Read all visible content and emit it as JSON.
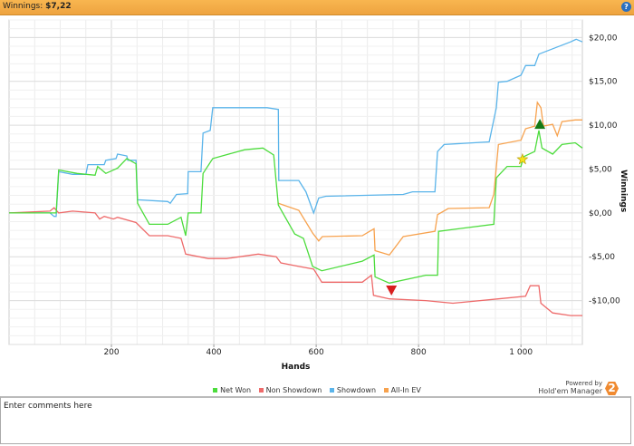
{
  "header": {
    "label": "Winnings:",
    "value": "$7,22",
    "help_icon": "?"
  },
  "chart_data": {
    "type": "line",
    "xlabel": "Hands",
    "ylabel": "Winnings",
    "xlim": [
      0,
      1120
    ],
    "ylim": [
      -15,
      22
    ],
    "x_ticks": [
      200,
      400,
      600,
      800,
      1000
    ],
    "x_tick_labels": [
      "200",
      "400",
      "600",
      "800",
      "1 000"
    ],
    "y_ticks": [
      20,
      15,
      10,
      5,
      0,
      -5,
      -10
    ],
    "y_tick_labels": [
      "$20,00",
      "$15,00",
      "$10,00",
      "$5,00",
      "$0,00",
      "-$5,00",
      "-$10,00"
    ],
    "grid": true,
    "legend_position": "bottom",
    "series": [
      {
        "name": "Showdown",
        "color": "#5ab4ea",
        "points": [
          [
            0,
            0
          ],
          [
            80,
            0
          ],
          [
            88,
            -0.4
          ],
          [
            92,
            -0.4
          ],
          [
            97,
            4.7
          ],
          [
            124,
            4.4
          ],
          [
            150,
            4.4
          ],
          [
            154,
            5.5
          ],
          [
            186,
            5.5
          ],
          [
            189,
            6.0
          ],
          [
            209,
            6.2
          ],
          [
            212,
            6.7
          ],
          [
            230,
            6.5
          ],
          [
            232,
            6.0
          ],
          [
            248,
            6.0
          ],
          [
            251,
            1.5
          ],
          [
            310,
            1.3
          ],
          [
            315,
            1.1
          ],
          [
            327,
            2.1
          ],
          [
            349,
            2.2
          ],
          [
            350,
            4.7
          ],
          [
            375,
            4.7
          ],
          [
            379,
            9.1
          ],
          [
            393,
            9.4
          ],
          [
            398,
            12.0
          ],
          [
            504,
            12.0
          ],
          [
            526,
            11.8
          ],
          [
            527,
            3.7
          ],
          [
            566,
            3.7
          ],
          [
            580,
            2.4
          ],
          [
            595,
            0
          ],
          [
            605,
            1.7
          ],
          [
            619,
            1.9
          ],
          [
            770,
            2.1
          ],
          [
            788,
            2.4
          ],
          [
            832,
            2.4
          ],
          [
            837,
            7.0
          ],
          [
            850,
            7.8
          ],
          [
            938,
            8.1
          ],
          [
            952,
            12.0
          ],
          [
            956,
            14.9
          ],
          [
            973,
            15.0
          ],
          [
            1000,
            15.7
          ],
          [
            1009,
            16.8
          ],
          [
            1027,
            16.8
          ],
          [
            1035,
            18.1
          ],
          [
            1097,
            19.5
          ],
          [
            1108,
            19.8
          ],
          [
            1120,
            19.5
          ]
        ]
      },
      {
        "name": "Non Showdown",
        "color": "#ee6a6a",
        "points": [
          [
            0,
            0
          ],
          [
            80,
            0.2
          ],
          [
            88,
            0.6
          ],
          [
            97,
            0
          ],
          [
            124,
            0.2
          ],
          [
            168,
            0
          ],
          [
            177,
            -0.7
          ],
          [
            186,
            -0.4
          ],
          [
            204,
            -0.7
          ],
          [
            212,
            -0.5
          ],
          [
            248,
            -1.1
          ],
          [
            274,
            -2.6
          ],
          [
            310,
            -2.6
          ],
          [
            336,
            -2.9
          ],
          [
            345,
            -4.7
          ],
          [
            389,
            -5.2
          ],
          [
            425,
            -5.2
          ],
          [
            487,
            -4.7
          ],
          [
            522,
            -5.0
          ],
          [
            531,
            -5.7
          ],
          [
            566,
            -6.1
          ],
          [
            595,
            -6.4
          ],
          [
            611,
            -7.9
          ],
          [
            690,
            -7.9
          ],
          [
            708,
            -7.1
          ],
          [
            712,
            -9.4
          ],
          [
            743,
            -9.8
          ],
          [
            814,
            -10.0
          ],
          [
            867,
            -10.3
          ],
          [
            956,
            -9.8
          ],
          [
            1009,
            -9.5
          ],
          [
            1018,
            -8.3
          ],
          [
            1035,
            -8.3
          ],
          [
            1039,
            -10.3
          ],
          [
            1062,
            -11.4
          ],
          [
            1097,
            -11.7
          ],
          [
            1120,
            -11.7
          ]
        ]
      },
      {
        "name": "All-In EV",
        "color": "#f7a24e",
        "points": [
          [
            526,
            1.1
          ],
          [
            566,
            0.3
          ],
          [
            593,
            -2.3
          ],
          [
            605,
            -3.2
          ],
          [
            612,
            -2.7
          ],
          [
            690,
            -2.6
          ],
          [
            713,
            -1.8
          ],
          [
            715,
            -4.3
          ],
          [
            743,
            -4.8
          ],
          [
            770,
            -2.7
          ],
          [
            832,
            -2.1
          ],
          [
            837,
            -0.2
          ],
          [
            858,
            0.5
          ],
          [
            938,
            0.6
          ],
          [
            947,
            2.1
          ],
          [
            956,
            7.8
          ],
          [
            1000,
            8.3
          ],
          [
            1009,
            9.6
          ],
          [
            1027,
            9.9
          ],
          [
            1032,
            12.6
          ],
          [
            1039,
            12.0
          ],
          [
            1044,
            9.9
          ],
          [
            1062,
            10.1
          ],
          [
            1071,
            8.8
          ],
          [
            1080,
            10.4
          ],
          [
            1106,
            10.6
          ],
          [
            1120,
            10.6
          ]
        ]
      },
      {
        "name": "Net Won",
        "color": "#4cdc3c",
        "points": [
          [
            0,
            0
          ],
          [
            92,
            0
          ],
          [
            97,
            4.9
          ],
          [
            133,
            4.5
          ],
          [
            168,
            4.3
          ],
          [
            173,
            5.3
          ],
          [
            189,
            4.5
          ],
          [
            212,
            5.1
          ],
          [
            230,
            6.2
          ],
          [
            248,
            5.6
          ],
          [
            251,
            1.1
          ],
          [
            274,
            -1.3
          ],
          [
            310,
            -1.3
          ],
          [
            336,
            -0.5
          ],
          [
            345,
            -2.6
          ],
          [
            350,
            0
          ],
          [
            375,
            0
          ],
          [
            379,
            4.5
          ],
          [
            398,
            6.2
          ],
          [
            460,
            7.2
          ],
          [
            496,
            7.4
          ],
          [
            517,
            6.6
          ],
          [
            526,
            0.9
          ],
          [
            558,
            -2.4
          ],
          [
            575,
            -2.9
          ],
          [
            593,
            -6.1
          ],
          [
            611,
            -6.6
          ],
          [
            690,
            -5.5
          ],
          [
            713,
            -4.8
          ],
          [
            715,
            -7.3
          ],
          [
            743,
            -8.0
          ],
          [
            814,
            -7.1
          ],
          [
            837,
            -7.1
          ],
          [
            839,
            -2.1
          ],
          [
            947,
            -1.3
          ],
          [
            952,
            4.0
          ],
          [
            973,
            5.3
          ],
          [
            1000,
            5.3
          ],
          [
            1005,
            6.4
          ],
          [
            1027,
            7.0
          ],
          [
            1035,
            9.4
          ],
          [
            1041,
            7.4
          ],
          [
            1062,
            6.7
          ],
          [
            1080,
            7.8
          ],
          [
            1106,
            8.0
          ],
          [
            1120,
            7.4
          ]
        ]
      }
    ],
    "legend_order": [
      "Net Won",
      "Non Showdown",
      "Showdown",
      "All-In EV"
    ],
    "markers": [
      {
        "name": "star",
        "hand": 1003,
        "value": 6.1,
        "color": "#f5e21a"
      },
      {
        "name": "triangle-up",
        "hand": 1037,
        "value": 10.1,
        "color": "#157a15"
      },
      {
        "name": "triangle-down",
        "hand": 747,
        "value": -8.8,
        "color": "#d81e1e"
      }
    ]
  },
  "legend": [
    {
      "label": "Net Won",
      "color": "#4cdc3c"
    },
    {
      "label": "Non Showdown",
      "color": "#ee6a6a"
    },
    {
      "label": "Showdown",
      "color": "#5ab4ea"
    },
    {
      "label": "All-In EV",
      "color": "#f7a24e"
    }
  ],
  "branding": {
    "line1": "Powered by",
    "line2": "Hold'em Manager",
    "badge": "2"
  },
  "comments": {
    "placeholder": "Enter comments here"
  }
}
